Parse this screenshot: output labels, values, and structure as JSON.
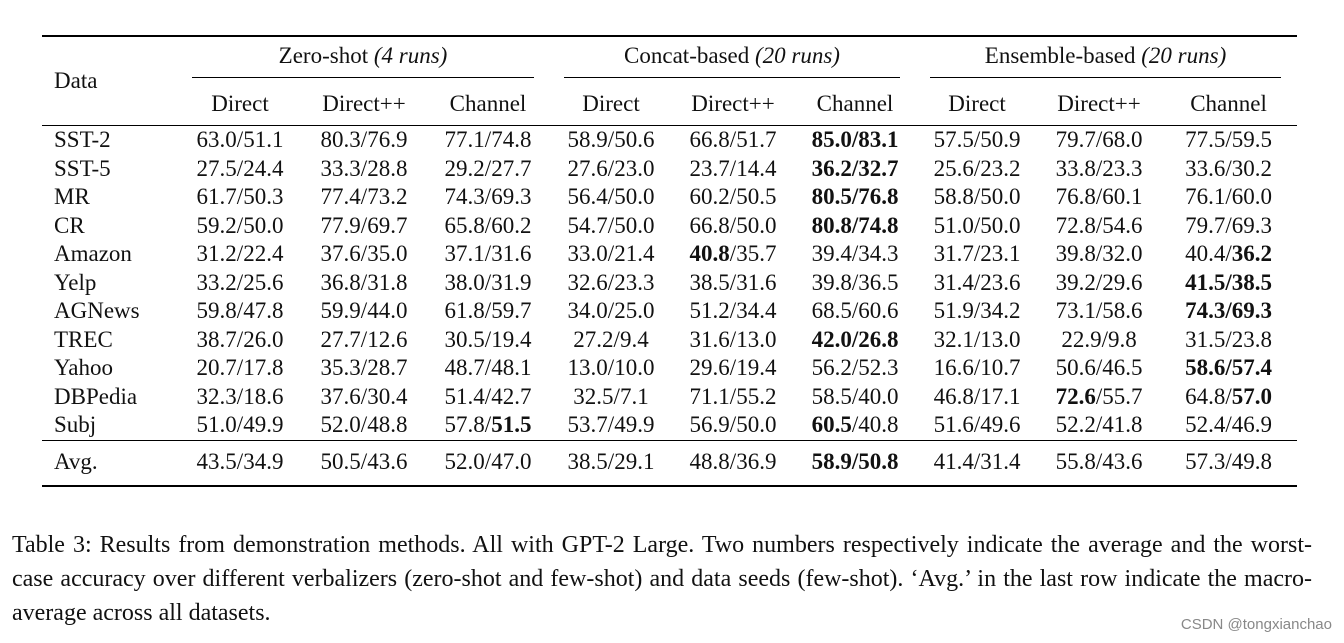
{
  "table": {
    "row_header": "Data",
    "groups": [
      {
        "name": "Zero-shot",
        "runs": "(4 runs)"
      },
      {
        "name": "Concat-based",
        "runs": "(20 runs)"
      },
      {
        "name": "Ensemble-based",
        "runs": "(20 runs)"
      }
    ],
    "subheaders": [
      "Direct",
      "Direct++",
      "Channel",
      "Direct",
      "Direct++",
      "Channel",
      "Direct",
      "Direct++",
      "Channel"
    ],
    "rows": [
      {
        "label": "SST-2",
        "cells": [
          {
            "a": "63.0",
            "b": "51.1"
          },
          {
            "a": "80.3",
            "b": "76.9"
          },
          {
            "a": "77.1",
            "b": "74.8"
          },
          {
            "a": "58.9",
            "b": "50.6"
          },
          {
            "a": "66.8",
            "b": "51.7"
          },
          {
            "a": "85.0",
            "b": "83.1",
            "ba": true,
            "bb": true
          },
          {
            "a": "57.5",
            "b": "50.9"
          },
          {
            "a": "79.7",
            "b": "68.0"
          },
          {
            "a": "77.5",
            "b": "59.5"
          }
        ]
      },
      {
        "label": "SST-5",
        "cells": [
          {
            "a": "27.5",
            "b": "24.4"
          },
          {
            "a": "33.3",
            "b": "28.8"
          },
          {
            "a": "29.2",
            "b": "27.7"
          },
          {
            "a": "27.6",
            "b": "23.0"
          },
          {
            "a": "23.7",
            "b": "14.4"
          },
          {
            "a": "36.2",
            "b": "32.7",
            "ba": true,
            "bb": true
          },
          {
            "a": "25.6",
            "b": "23.2"
          },
          {
            "a": "33.8",
            "b": "23.3"
          },
          {
            "a": "33.6",
            "b": "30.2"
          }
        ]
      },
      {
        "label": "MR",
        "cells": [
          {
            "a": "61.7",
            "b": "50.3"
          },
          {
            "a": "77.4",
            "b": "73.2"
          },
          {
            "a": "74.3",
            "b": "69.3"
          },
          {
            "a": "56.4",
            "b": "50.0"
          },
          {
            "a": "60.2",
            "b": "50.5"
          },
          {
            "a": "80.5",
            "b": "76.8",
            "ba": true,
            "bb": true
          },
          {
            "a": "58.8",
            "b": "50.0"
          },
          {
            "a": "76.8",
            "b": "60.1"
          },
          {
            "a": "76.1",
            "b": "60.0"
          }
        ]
      },
      {
        "label": "CR",
        "cells": [
          {
            "a": "59.2",
            "b": "50.0"
          },
          {
            "a": "77.9",
            "b": "69.7"
          },
          {
            "a": "65.8",
            "b": "60.2"
          },
          {
            "a": "54.7",
            "b": "50.0"
          },
          {
            "a": "66.8",
            "b": "50.0"
          },
          {
            "a": "80.8",
            "b": "74.8",
            "ba": true,
            "bb": true
          },
          {
            "a": "51.0",
            "b": "50.0"
          },
          {
            "a": "72.8",
            "b": "54.6"
          },
          {
            "a": "79.7",
            "b": "69.3"
          }
        ]
      },
      {
        "label": "Amazon",
        "cells": [
          {
            "a": "31.2",
            "b": "22.4"
          },
          {
            "a": "37.6",
            "b": "35.0"
          },
          {
            "a": "37.1",
            "b": "31.6"
          },
          {
            "a": "33.0",
            "b": "21.4"
          },
          {
            "a": "40.8",
            "b": "35.7",
            "ba": true
          },
          {
            "a": "39.4",
            "b": "34.3"
          },
          {
            "a": "31.7",
            "b": "23.1"
          },
          {
            "a": "39.8",
            "b": "32.0"
          },
          {
            "a": "40.4",
            "b": "36.2",
            "bb": true
          }
        ]
      },
      {
        "label": "Yelp",
        "cells": [
          {
            "a": "33.2",
            "b": "25.6"
          },
          {
            "a": "36.8",
            "b": "31.8"
          },
          {
            "a": "38.0",
            "b": "31.9"
          },
          {
            "a": "32.6",
            "b": "23.3"
          },
          {
            "a": "38.5",
            "b": "31.6"
          },
          {
            "a": "39.8",
            "b": "36.5"
          },
          {
            "a": "31.4",
            "b": "23.6"
          },
          {
            "a": "39.2",
            "b": "29.6"
          },
          {
            "a": "41.5",
            "b": "38.5",
            "ba": true,
            "bb": true
          }
        ]
      },
      {
        "label": "AGNews",
        "cells": [
          {
            "a": "59.8",
            "b": "47.8"
          },
          {
            "a": "59.9",
            "b": "44.0"
          },
          {
            "a": "61.8",
            "b": "59.7"
          },
          {
            "a": "34.0",
            "b": "25.0"
          },
          {
            "a": "51.2",
            "b": "34.4"
          },
          {
            "a": "68.5",
            "b": "60.6"
          },
          {
            "a": "51.9",
            "b": "34.2"
          },
          {
            "a": "73.1",
            "b": "58.6"
          },
          {
            "a": "74.3",
            "b": "69.3",
            "ba": true,
            "bb": true
          }
        ]
      },
      {
        "label": "TREC",
        "cells": [
          {
            "a": "38.7",
            "b": "26.0"
          },
          {
            "a": "27.7",
            "b": "12.6"
          },
          {
            "a": "30.5",
            "b": "19.4"
          },
          {
            "a": "27.2",
            "b": "9.4"
          },
          {
            "a": "31.6",
            "b": "13.0"
          },
          {
            "a": "42.0",
            "b": "26.8",
            "ba": true,
            "bb": true
          },
          {
            "a": "32.1",
            "b": "13.0"
          },
          {
            "a": "22.9",
            "b": "9.8"
          },
          {
            "a": "31.5",
            "b": "23.8"
          }
        ]
      },
      {
        "label": "Yahoo",
        "cells": [
          {
            "a": "20.7",
            "b": "17.8"
          },
          {
            "a": "35.3",
            "b": "28.7"
          },
          {
            "a": "48.7",
            "b": "48.1"
          },
          {
            "a": "13.0",
            "b": "10.0"
          },
          {
            "a": "29.6",
            "b": "19.4"
          },
          {
            "a": "56.2",
            "b": "52.3"
          },
          {
            "a": "16.6",
            "b": "10.7"
          },
          {
            "a": "50.6",
            "b": "46.5"
          },
          {
            "a": "58.6",
            "b": "57.4",
            "ba": true,
            "bb": true
          }
        ]
      },
      {
        "label": "DBPedia",
        "cells": [
          {
            "a": "32.3",
            "b": "18.6"
          },
          {
            "a": "37.6",
            "b": "30.4"
          },
          {
            "a": "51.4",
            "b": "42.7"
          },
          {
            "a": "32.5",
            "b": "7.1"
          },
          {
            "a": "71.1",
            "b": "55.2"
          },
          {
            "a": "58.5",
            "b": "40.0"
          },
          {
            "a": "46.8",
            "b": "17.1"
          },
          {
            "a": "72.6",
            "b": "55.7",
            "ba": true
          },
          {
            "a": "64.8",
            "b": "57.0",
            "bb": true
          }
        ]
      },
      {
        "label": "Subj",
        "cells": [
          {
            "a": "51.0",
            "b": "49.9"
          },
          {
            "a": "52.0",
            "b": "48.8"
          },
          {
            "a": "57.8",
            "b": "51.5",
            "bb": true
          },
          {
            "a": "53.7",
            "b": "49.9"
          },
          {
            "a": "56.9",
            "b": "50.0"
          },
          {
            "a": "60.5",
            "b": "40.8",
            "ba": true
          },
          {
            "a": "51.6",
            "b": "49.6"
          },
          {
            "a": "52.2",
            "b": "41.8"
          },
          {
            "a": "52.4",
            "b": "46.9"
          }
        ]
      }
    ],
    "avg_row": {
      "label": "Avg.",
      "cells": [
        {
          "a": "43.5",
          "b": "34.9"
        },
        {
          "a": "50.5",
          "b": "43.6"
        },
        {
          "a": "52.0",
          "b": "47.0"
        },
        {
          "a": "38.5",
          "b": "29.1"
        },
        {
          "a": "48.8",
          "b": "36.9"
        },
        {
          "a": "58.9",
          "b": "50.8",
          "ba": true,
          "bb": true
        },
        {
          "a": "41.4",
          "b": "31.4"
        },
        {
          "a": "55.8",
          "b": "43.6"
        },
        {
          "a": "57.3",
          "b": "49.8"
        }
      ]
    }
  },
  "caption": "Table 3: Results from demonstration methods. All with GPT-2 Large. Two numbers respectively indicate the average and the worst-case accuracy over different verbalizers (zero-shot and few-shot) and data seeds (few-shot). ‘Avg.’ in the last row indicate the macro-average across all datasets.",
  "watermark": "CSDN @tongxianchao"
}
